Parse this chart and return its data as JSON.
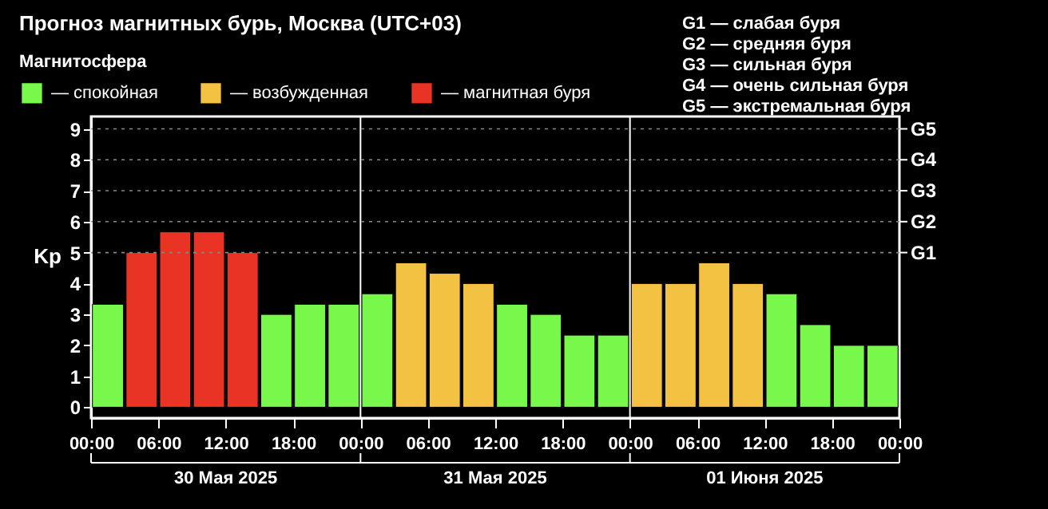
{
  "chart_data": {
    "type": "bar",
    "title": "Прогноз магнитных бурь, Москва (UTC+03)",
    "ylabel": "Kp",
    "legend_title": "Магнитосфера",
    "x": [
      "2025-05-30T01:30",
      "2025-05-30T04:30",
      "2025-05-30T07:30",
      "2025-05-30T10:30",
      "2025-05-30T13:30",
      "2025-05-30T16:30",
      "2025-05-30T19:30",
      "2025-05-30T22:30",
      "2025-05-31T01:30",
      "2025-05-31T04:30",
      "2025-05-31T07:30",
      "2025-05-31T10:30",
      "2025-05-31T13:30",
      "2025-05-31T16:30",
      "2025-05-31T19:30",
      "2025-05-31T22:30",
      "2025-06-01T01:30",
      "2025-06-01T04:30",
      "2025-06-01T07:30",
      "2025-06-01T10:30",
      "2025-06-01T13:30",
      "2025-06-01T16:30",
      "2025-06-01T19:30",
      "2025-06-01T22:30"
    ],
    "series": [
      {
        "name": "— спокойная",
        "color": "#77f84a",
        "values": [
          3.33,
          null,
          null,
          null,
          null,
          3,
          3.33,
          3.33,
          3.67,
          null,
          null,
          null,
          3.33,
          3,
          2.33,
          2.33,
          null,
          null,
          null,
          null,
          3.67,
          2.67,
          2,
          2
        ]
      },
      {
        "name": "— возбужденная",
        "color": "#f4c243",
        "values": [
          null,
          null,
          null,
          null,
          null,
          null,
          null,
          null,
          null,
          4.67,
          4.33,
          4,
          null,
          null,
          null,
          null,
          4,
          4,
          4.67,
          4,
          null,
          null,
          null,
          null
        ]
      },
      {
        "name": "— магнитная буря",
        "color": "#e83325",
        "values": [
          null,
          5,
          5.67,
          5.67,
          5,
          null,
          null,
          null,
          null,
          null,
          null,
          null,
          null,
          null,
          null,
          null,
          null,
          null,
          null,
          null,
          null,
          null,
          null,
          null
        ]
      }
    ],
    "xlim": [
      "2025-05-30T00:00",
      "2025-06-02T00:00"
    ],
    "xticks": [
      {
        "value": "2025-05-30T00:00",
        "label": "00:00"
      },
      {
        "value": "2025-05-30T06:00",
        "label": "06:00"
      },
      {
        "value": "2025-05-30T12:00",
        "label": "12:00"
      },
      {
        "value": "2025-05-30T18:00",
        "label": "18:00"
      },
      {
        "value": "2025-05-31T00:00",
        "label": "00:00"
      },
      {
        "value": "2025-05-31T06:00",
        "label": "06:00"
      },
      {
        "value": "2025-05-31T12:00",
        "label": "12:00"
      },
      {
        "value": "2025-05-31T18:00",
        "label": "18:00"
      },
      {
        "value": "2025-06-01T00:00",
        "label": "00:00"
      },
      {
        "value": "2025-06-01T06:00",
        "label": "06:00"
      },
      {
        "value": "2025-06-01T12:00",
        "label": "12:00"
      },
      {
        "value": "2025-06-01T18:00",
        "label": "18:00"
      },
      {
        "value": "2025-06-02T00:00",
        "label": "00:00"
      }
    ],
    "ylim": [
      -0.35,
      9.4
    ],
    "yticks": [
      0,
      1,
      2,
      3,
      4,
      5,
      6,
      7,
      8,
      9
    ],
    "legend": "top left",
    "ref_lines": [
      {
        "axis": "x",
        "value": "2025-05-31T00:00",
        "label": null,
        "color": "#ffffff"
      },
      {
        "axis": "x",
        "value": "2025-06-01T00:00",
        "label": null,
        "color": "#ffffff"
      },
      {
        "axis": "y",
        "value": 5,
        "label": "G1",
        "color": "#888888",
        "line_style": "dotted"
      },
      {
        "axis": "y",
        "value": 6,
        "label": "G2",
        "color": "#888888",
        "line_style": "dotted"
      },
      {
        "axis": "y",
        "value": 7,
        "label": "G3",
        "color": "#888888",
        "line_style": "dotted"
      },
      {
        "axis": "y",
        "value": 8,
        "label": "G4",
        "color": "#888888",
        "line_style": "dotted"
      },
      {
        "axis": "y",
        "value": 9,
        "label": "G5",
        "color": "#888888",
        "line_style": "dotted"
      }
    ],
    "annotations": [
      "G1 — слабая буря",
      "G2 — средняя буря",
      "G3 — сильная буря",
      "G4 — очень сильная буря",
      "G5 — экстремальная буря",
      "30 Мая 2025",
      "31 Мая 2025",
      "01 Июня 2025"
    ]
  }
}
